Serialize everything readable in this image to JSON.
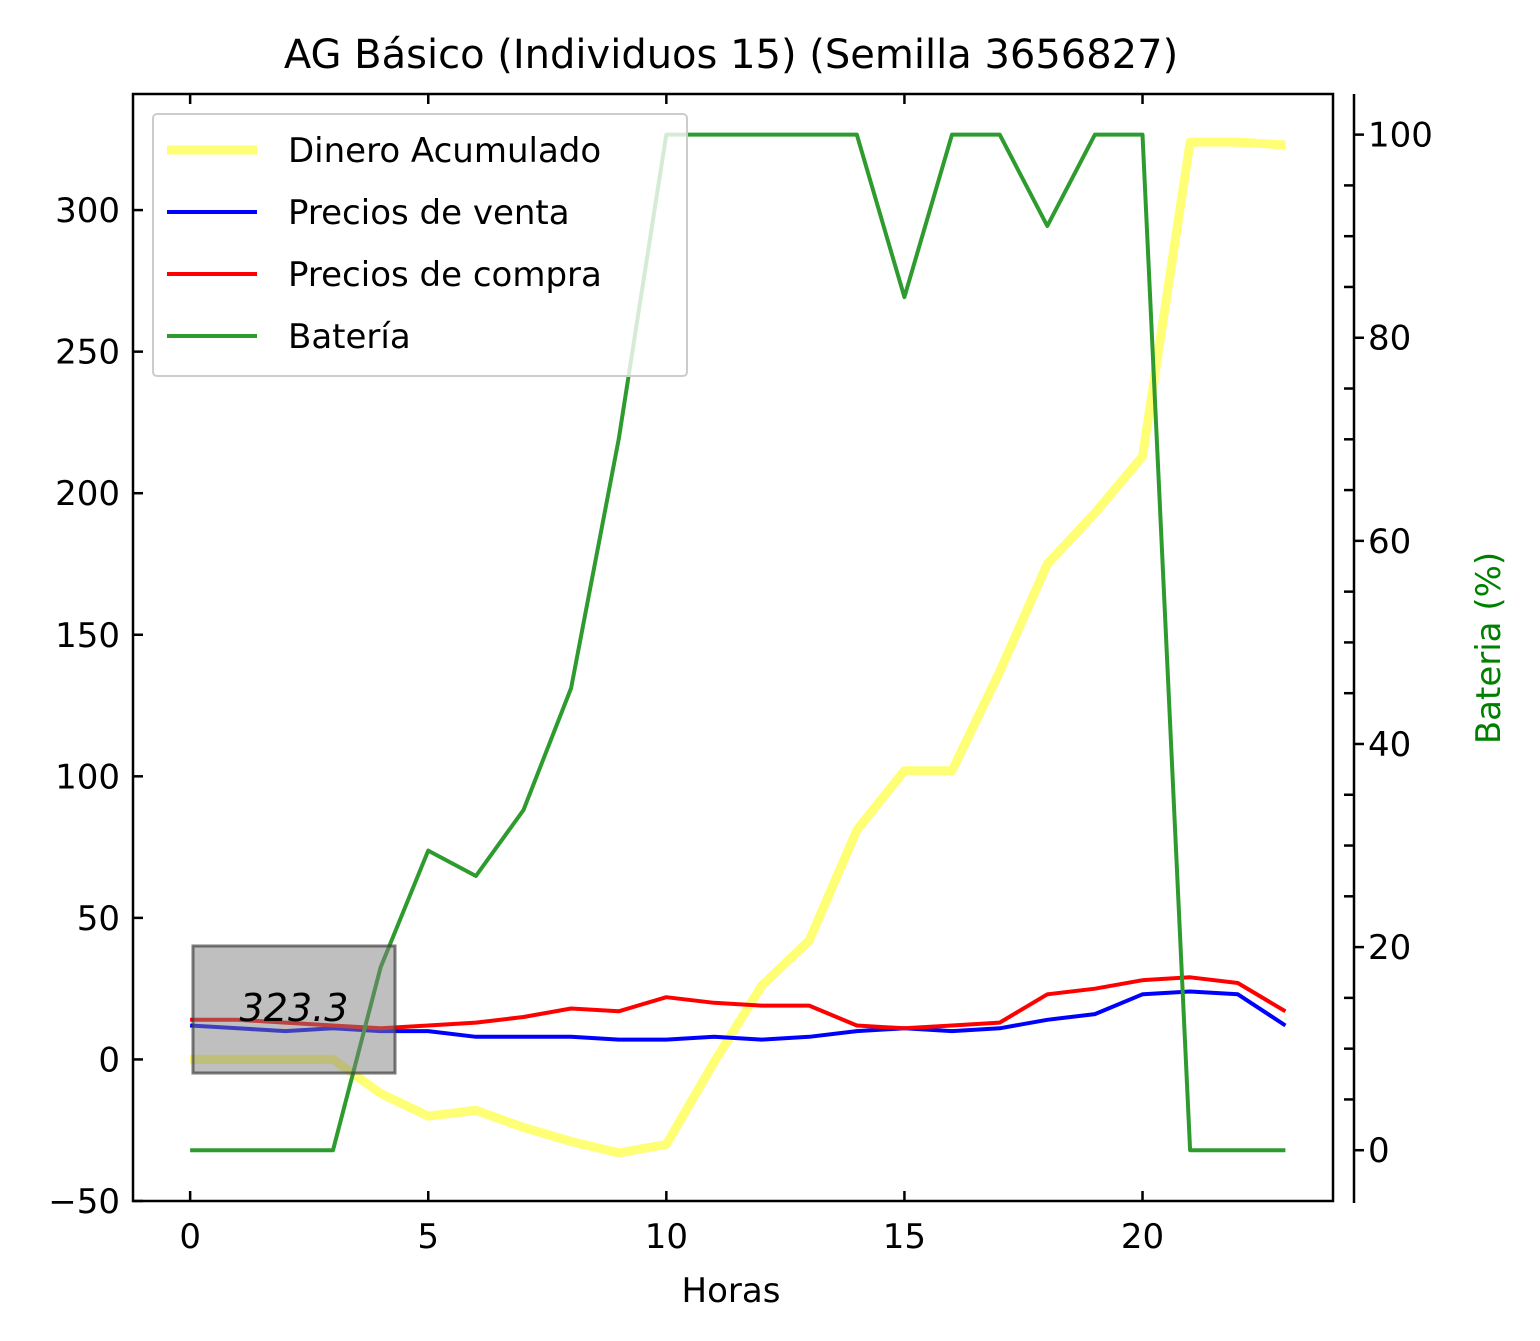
{
  "chart_data": {
    "type": "line",
    "title": "AG Básico (Individuos 15) (Semilla 3656827)",
    "xlabel": "Horas",
    "ylabel": "",
    "y2label": "Bateria (%)",
    "xlim": [
      -1.2,
      24.0
    ],
    "ylim": [
      -50,
      341
    ],
    "y2lim": [
      -5,
      104
    ],
    "xticks": [
      0,
      5,
      10,
      15,
      20
    ],
    "yticks": [
      -50,
      0,
      50,
      100,
      150,
      200,
      250,
      300
    ],
    "y2ticks": [
      0,
      20,
      40,
      60,
      80,
      100
    ],
    "x": [
      0,
      1,
      2,
      3,
      4,
      5,
      6,
      7,
      8,
      9,
      10,
      11,
      12,
      13,
      14,
      15,
      16,
      17,
      18,
      19,
      20,
      21,
      22,
      23
    ],
    "series": [
      {
        "name": "Dinero Acumulado",
        "axis": "left",
        "color": "#ffff66",
        "values": [
          0,
          0,
          0,
          0,
          -12,
          -20,
          -18,
          -24,
          -29,
          -33,
          -30,
          -1,
          26,
          42,
          81,
          102,
          102,
          137,
          175,
          193,
          213,
          324,
          324,
          323
        ]
      },
      {
        "name": "Precios de venta",
        "axis": "left",
        "color": "#0000ff",
        "values": [
          12,
          11,
          10,
          11,
          10,
          10,
          8,
          8,
          8,
          7,
          7,
          8,
          7,
          8,
          10,
          11,
          10,
          11,
          14,
          16,
          23,
          24,
          23,
          12
        ]
      },
      {
        "name": "Precios de compra",
        "axis": "left",
        "color": "#ff0000",
        "values": [
          14,
          14,
          13,
          12,
          11,
          12,
          13,
          15,
          18,
          17,
          22,
          20,
          19,
          19,
          12,
          11,
          12,
          13,
          23,
          25,
          28,
          29,
          27,
          17
        ]
      },
      {
        "name": "Batería",
        "axis": "right",
        "color": "#2e9b2e",
        "values": [
          0,
          0,
          0,
          0,
          18,
          29.5,
          27,
          33.5,
          45.5,
          70,
          100,
          100,
          100,
          100,
          100,
          84,
          100,
          100,
          91,
          100,
          100,
          0,
          0,
          0
        ]
      }
    ],
    "legend": {
      "position": "top-left"
    },
    "annotation": {
      "text": "323.3"
    },
    "grid": false
  }
}
